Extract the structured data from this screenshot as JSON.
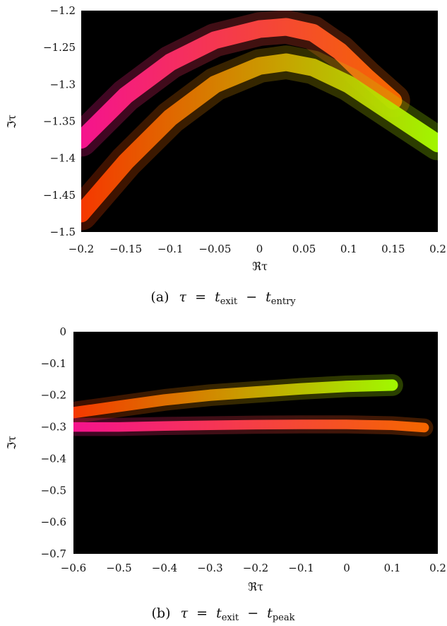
{
  "chart_data": [
    {
      "type": "scatter",
      "xlabel": "ℜτ",
      "ylabel": "ℑτ",
      "xlim": [
        -0.2,
        0.2
      ],
      "ylim": [
        -1.5,
        -1.2
      ],
      "xticks": [
        "−0.2",
        "−0.15",
        "−0.1",
        "−0.05",
        "0",
        "0.05",
        "0.1",
        "0.15",
        "0.2"
      ],
      "yticks": [
        "−1.2",
        "−1.25",
        "−1.3",
        "−1.35",
        "−1.4",
        "−1.45",
        "−1.5"
      ],
      "xtick_values": [
        -0.2,
        -0.15,
        -0.1,
        -0.05,
        0,
        0.05,
        0.1,
        0.15,
        0.2
      ],
      "ytick_values": [
        -1.2,
        -1.25,
        -1.3,
        -1.35,
        -1.4,
        -1.45,
        -1.5
      ],
      "background": "#000000",
      "caption": {
        "label": "(a)",
        "tau": "τ",
        "eq": "=",
        "t1": "t",
        "sub1": "exit",
        "minus": "−",
        "t2": "t",
        "sub2": "entry"
      },
      "series": [
        {
          "color_start": "#ff1493",
          "color_end": "#ff6a00",
          "band_half_width": 0.012,
          "x": [
            -0.2,
            -0.15,
            -0.1,
            -0.05,
            0.0,
            0.03,
            0.06,
            0.09,
            0.12,
            0.15
          ],
          "y": [
            -1.375,
            -1.315,
            -1.27,
            -1.24,
            -1.225,
            -1.222,
            -1.23,
            -1.255,
            -1.29,
            -1.322
          ]
        },
        {
          "color_start": "#ff3a00",
          "color_end": "#a8ff00",
          "band_half_width": 0.012,
          "x": [
            -0.2,
            -0.15,
            -0.1,
            -0.05,
            0.0,
            0.03,
            0.06,
            0.1,
            0.15,
            0.2
          ],
          "y": [
            -1.475,
            -1.405,
            -1.345,
            -1.3,
            -1.275,
            -1.27,
            -1.277,
            -1.3,
            -1.34,
            -1.38
          ]
        }
      ]
    },
    {
      "type": "scatter",
      "xlabel": "ℜτ",
      "ylabel": "ℑτ",
      "xlim": [
        -0.6,
        0.2
      ],
      "ylim": [
        -0.7,
        0
      ],
      "xticks": [
        "−0.6",
        "−0.5",
        "−0.4",
        "−0.3",
        "−0.2",
        "−0.1",
        "0",
        "0.1",
        "0.2"
      ],
      "yticks": [
        "0",
        "−0.1",
        "−0.2",
        "−0.3",
        "−0.4",
        "−0.5",
        "−0.6",
        "−0.7"
      ],
      "xtick_values": [
        -0.6,
        -0.5,
        -0.4,
        -0.3,
        -0.2,
        -0.1,
        0,
        0.1,
        0.2
      ],
      "ytick_values": [
        0,
        -0.1,
        -0.2,
        -0.3,
        -0.4,
        -0.5,
        -0.6,
        -0.7
      ],
      "background": "#000000",
      "caption": {
        "label": "(b)",
        "tau": "τ",
        "eq": "=",
        "t1": "t",
        "sub1": "exit",
        "minus": "−",
        "t2": "t",
        "sub2": "peak"
      },
      "series": [
        {
          "color_start": "#ff3a00",
          "color_end": "#a8ff00",
          "band_half_width": 0.018,
          "x": [
            -0.6,
            -0.5,
            -0.4,
            -0.3,
            -0.2,
            -0.1,
            0.0,
            0.1
          ],
          "y": [
            -0.255,
            -0.235,
            -0.215,
            -0.2,
            -0.19,
            -0.18,
            -0.172,
            -0.168
          ]
        },
        {
          "color_start": "#ff1493",
          "color_end": "#ff6a00",
          "band_half_width": 0.015,
          "x": [
            -0.6,
            -0.5,
            -0.4,
            -0.3,
            -0.2,
            -0.1,
            0.0,
            0.1,
            0.17
          ],
          "y": [
            -0.3,
            -0.3,
            -0.297,
            -0.295,
            -0.293,
            -0.292,
            -0.292,
            -0.295,
            -0.302
          ]
        }
      ]
    }
  ]
}
